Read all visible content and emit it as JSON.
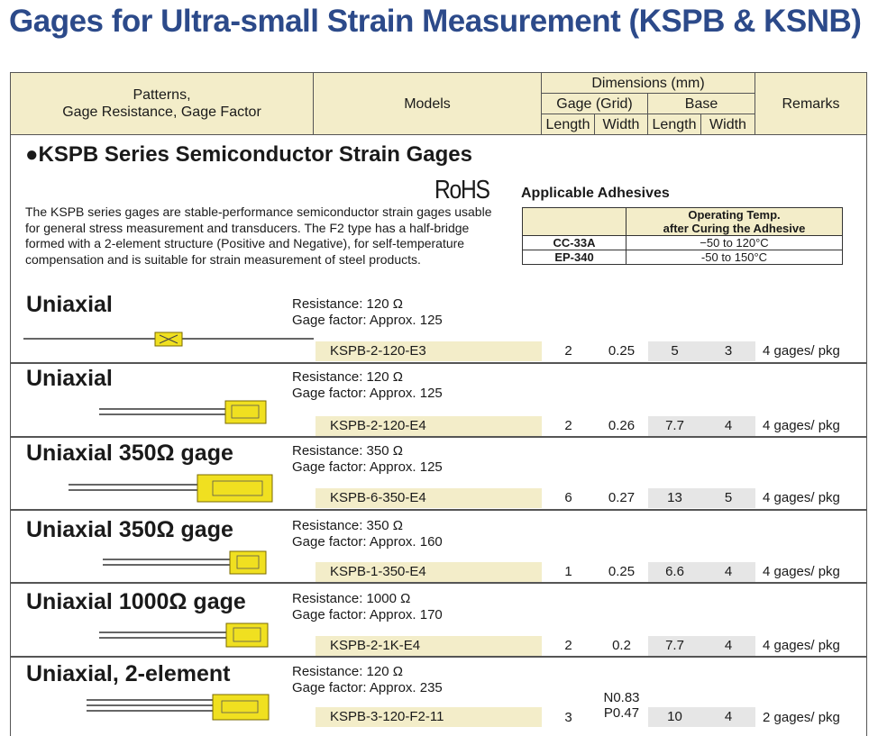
{
  "page_title": "Gages for Ultra-small Strain Measurement (KSPB & KSNB)",
  "header": {
    "patterns_line1": "Patterns,",
    "patterns_line2": "Gage Resistance, Gage Factor",
    "models": "Models",
    "dimensions": "Dimensions (mm)",
    "gage_grid": "Gage (Grid)",
    "base": "Base",
    "length": "Length",
    "width": "Width",
    "remarks": "Remarks"
  },
  "series": {
    "heading": "●KSPB Series Semiconductor Strain Gages",
    "rohs": "RoHS",
    "description": "The KSPB series gages are stable-performance semiconductor strain gages usable for general stress measurement and transducers. The F2 type has a half-bridge formed with a 2-element structure (Positive and Negative), for self-temperature compensation and is suitable for strain measurement of steel products."
  },
  "adhesives": {
    "title": "Applicable Adhesives",
    "col_header_line1": "Operating Temp.",
    "col_header_line2": "after Curing the Adhesive",
    "rows": [
      {
        "name": "CC-33A",
        "temp": "−50 to 120°C"
      },
      {
        "name": "EP-340",
        "temp": "-50 to 150°C"
      }
    ]
  },
  "products": [
    {
      "pattern": "Uniaxial",
      "resistance": "Resistance: 120 Ω",
      "gage_factor": "Gage factor: Approx. 125",
      "model": "KSPB-2-120-E3",
      "gage_length": "2",
      "gage_width": "0.25",
      "base_length": "5",
      "base_width": "3",
      "remarks": "4 gages/ pkg"
    },
    {
      "pattern": "Uniaxial",
      "resistance": "Resistance: 120 Ω",
      "gage_factor": "Gage factor: Approx. 125",
      "model": "KSPB-2-120-E4",
      "gage_length": "2",
      "gage_width": "0.26",
      "base_length": "7.7",
      "base_width": "4",
      "remarks": "4 gages/ pkg"
    },
    {
      "pattern": "Uniaxial 350Ω gage",
      "resistance": "Resistance: 350 Ω",
      "gage_factor": "Gage factor: Approx. 125",
      "model": "KSPB-6-350-E4",
      "gage_length": "6",
      "gage_width": "0.27",
      "base_length": "13",
      "base_width": "5",
      "remarks": "4 gages/ pkg"
    },
    {
      "pattern": "Uniaxial 350Ω gage",
      "resistance": "Resistance: 350 Ω",
      "gage_factor": "Gage factor: Approx. 160",
      "model": "KSPB-1-350-E4",
      "gage_length": "1",
      "gage_width": "0.25",
      "base_length": "6.6",
      "base_width": "4",
      "remarks": "4 gages/ pkg"
    },
    {
      "pattern": "Uniaxial 1000Ω gage",
      "resistance": "Resistance: 1000 Ω",
      "gage_factor": "Gage factor: Approx. 170",
      "model": "KSPB-2-1K-E4",
      "gage_length": "2",
      "gage_width": "0.2",
      "base_length": "7.7",
      "base_width": "4",
      "remarks": "4 gages/ pkg"
    },
    {
      "pattern": "Uniaxial, 2-element",
      "resistance": "Resistance: 120 Ω",
      "gage_factor": "Gage factor: Approx. 235",
      "model": "KSPB-3-120-F2-11",
      "gage_length": "3",
      "gage_width_n": "N0.83",
      "gage_width_p": "P0.47",
      "base_length": "10",
      "base_width": "4",
      "remarks": "2 gages/ pkg"
    }
  ]
}
